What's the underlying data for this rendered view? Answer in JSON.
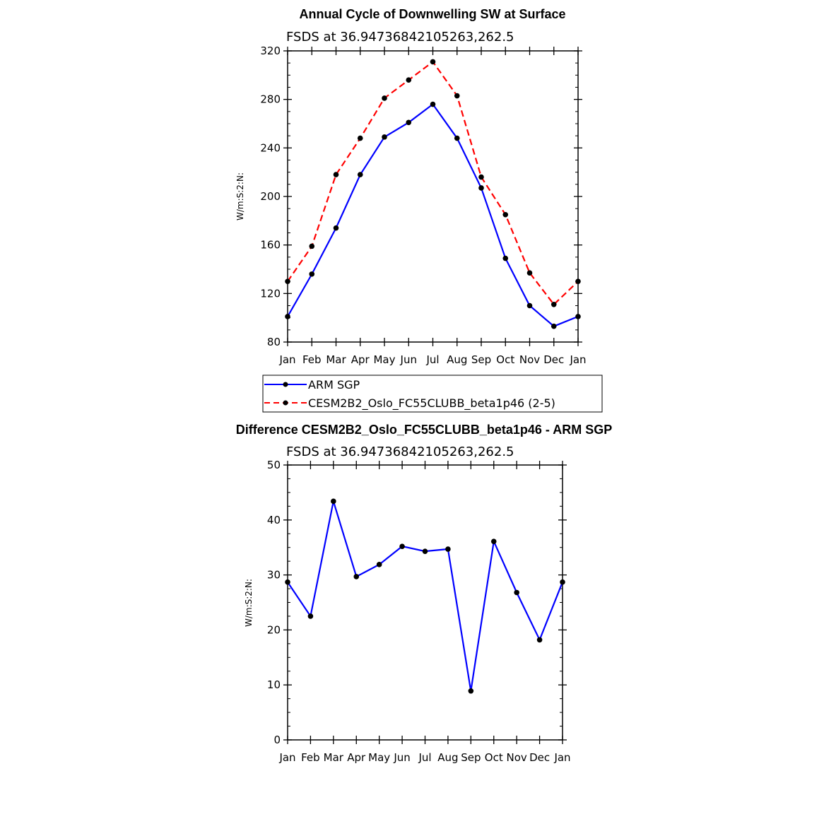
{
  "chart_data": [
    {
      "type": "line",
      "title": "Annual Cycle of Downwelling SW at Surface",
      "subtitle": "FSDS  at  36.94736842105263,262.5",
      "ylabel": "W/m:S:2:N:",
      "xlabel": "",
      "categories": [
        "Jan",
        "Feb",
        "Mar",
        "Apr",
        "May",
        "Jun",
        "Jul",
        "Aug",
        "Sep",
        "Oct",
        "Nov",
        "Dec",
        "Jan"
      ],
      "ylim": [
        80,
        320
      ],
      "yticks": [
        80,
        120,
        160,
        200,
        240,
        280,
        320
      ],
      "grid": false,
      "legend_position": "below",
      "series": [
        {
          "name": "ARM SGP",
          "color": "#0000ff",
          "dash": "solid",
          "values": [
            101,
            136,
            174,
            218,
            249,
            261,
            276,
            248,
            207,
            149,
            110,
            93,
            101
          ]
        },
        {
          "name": "CESM2B2_Oslo_FC55CLUBB_beta1p46 (2-5)",
          "color": "#ff0000",
          "dash": "dashed",
          "values": [
            130,
            159,
            218,
            248,
            281,
            296,
            311,
            283,
            216,
            185,
            137,
            111,
            130
          ]
        }
      ]
    },
    {
      "type": "line",
      "title": "Difference CESM2B2_Oslo_FC55CLUBB_beta1p46 - ARM SGP",
      "subtitle": "FSDS  at  36.94736842105263,262.5",
      "ylabel": "W/m:S:2:N:",
      "xlabel": "",
      "categories": [
        "Jan",
        "Feb",
        "Mar",
        "Apr",
        "May",
        "Jun",
        "Jul",
        "Aug",
        "Sep",
        "Oct",
        "Nov",
        "Dec",
        "Jan"
      ],
      "ylim": [
        0,
        50
      ],
      "yticks": [
        0,
        10,
        20,
        30,
        40,
        50
      ],
      "grid": false,
      "series": [
        {
          "color": "#0000ff",
          "dash": "solid",
          "values": [
            28.7,
            22.5,
            43.4,
            29.7,
            31.9,
            35.2,
            34.3,
            34.7,
            8.9,
            36.1,
            26.8,
            18.2,
            28.7
          ]
        }
      ]
    }
  ]
}
